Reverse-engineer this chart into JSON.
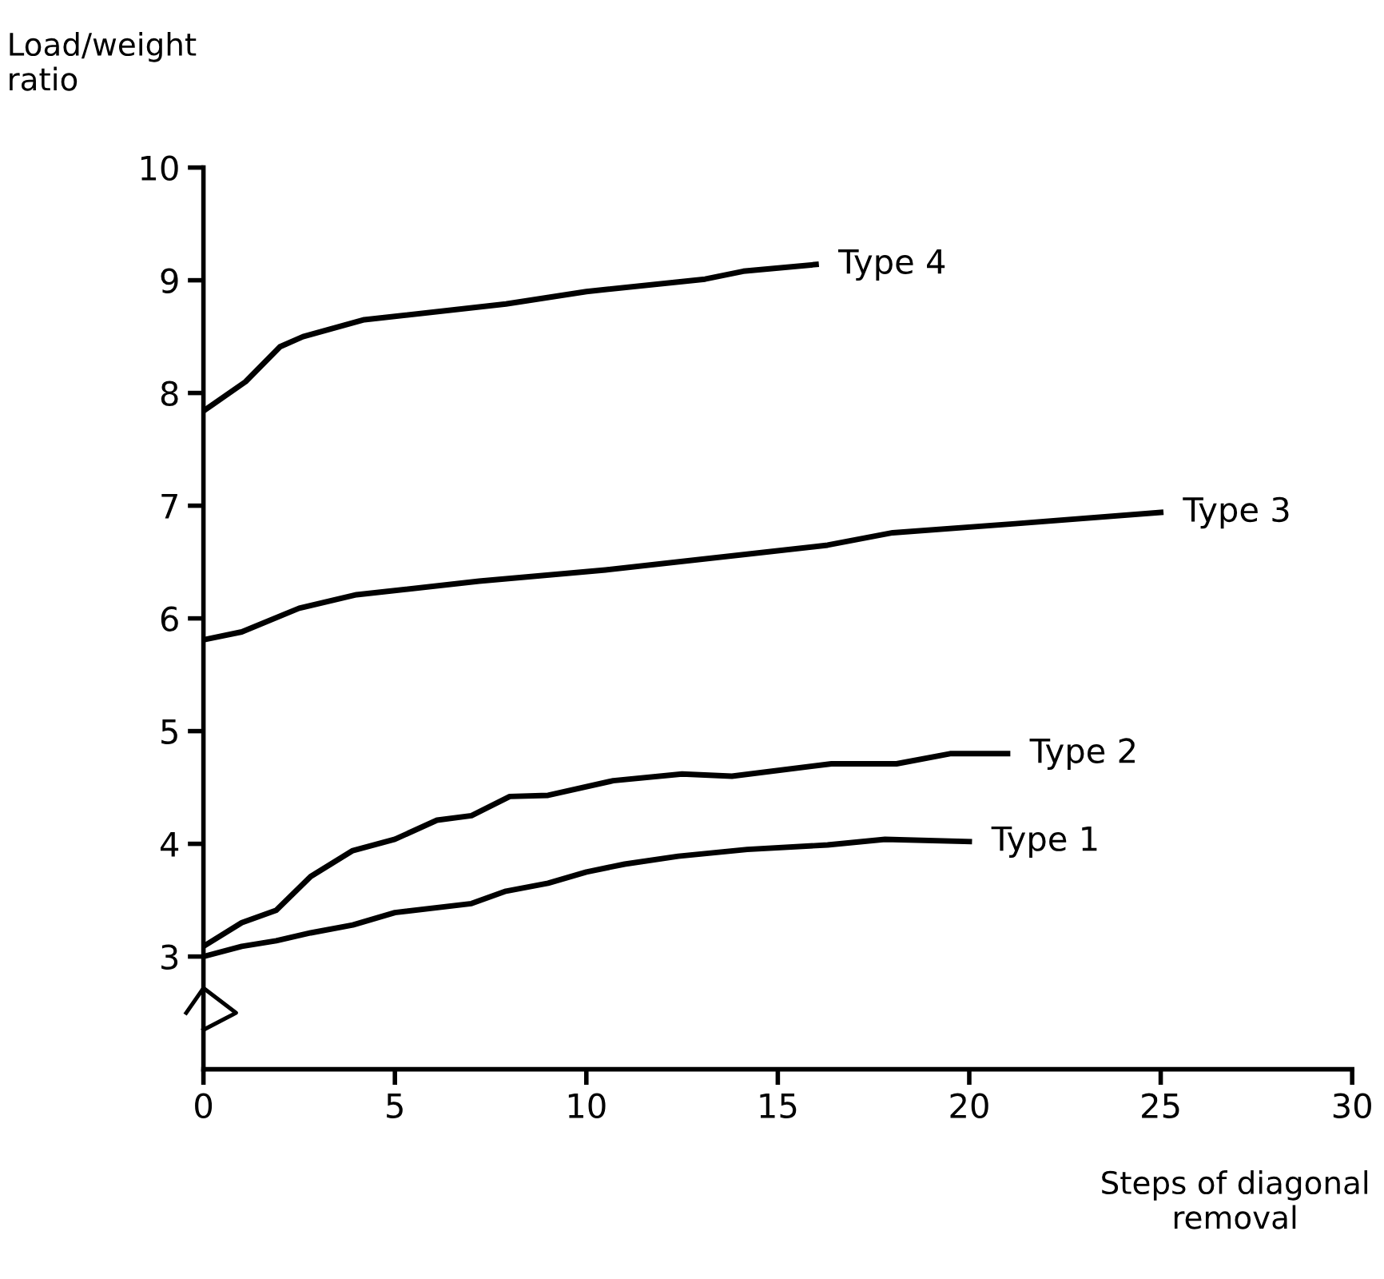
{
  "chart_data": {
    "type": "line",
    "xlabel": "Steps of diagonal\nremoval",
    "ylabel": "Load/weight\nratio",
    "xlim": [
      0,
      30
    ],
    "xticks": [
      0,
      5,
      10,
      15,
      20,
      25,
      30
    ],
    "ylim": [
      2,
      10
    ],
    "yticks": [
      3,
      4,
      5,
      6,
      7,
      8,
      9,
      10
    ],
    "grid": false,
    "legend": false,
    "marker": "none",
    "line_style": "solid",
    "series": [
      {
        "name": "Type 1",
        "color": "#000000",
        "x": [
          0,
          1,
          1.9,
          2.8,
          3.9,
          5,
          7,
          7.9,
          9,
          10,
          11,
          12.4,
          14.2,
          16.3,
          17.8,
          20
        ],
        "values": [
          3.0,
          3.09,
          3.14,
          3.21,
          3.28,
          3.39,
          3.47,
          3.58,
          3.65,
          3.75,
          3.82,
          3.89,
          3.95,
          3.99,
          4.04,
          4.02
        ]
      },
      {
        "name": "Type 2",
        "color": "#000000",
        "x": [
          0,
          1,
          1.9,
          2.8,
          3.9,
          5,
          6.1,
          7,
          8,
          9,
          10.7,
          12.5,
          13.8,
          16.4,
          18.1,
          19.5,
          21
        ],
        "values": [
          3.09,
          3.3,
          3.41,
          3.71,
          3.94,
          4.04,
          4.21,
          4.25,
          4.42,
          4.43,
          4.56,
          4.62,
          4.6,
          4.71,
          4.71,
          4.8,
          4.8
        ]
      },
      {
        "name": "Type 3",
        "color": "#000000",
        "x": [
          0,
          1,
          2.5,
          4,
          7.2,
          10.5,
          14.2,
          16.3,
          18,
          21.2,
          25
        ],
        "values": [
          5.81,
          5.88,
          6.09,
          6.21,
          6.33,
          6.43,
          6.57,
          6.65,
          6.76,
          6.84,
          6.94
        ]
      },
      {
        "name": "Type 4",
        "color": "#000000",
        "x": [
          0,
          1.1,
          2,
          2.6,
          4.2,
          7.9,
          10,
          13.1,
          14.1,
          16
        ],
        "values": [
          7.84,
          8.1,
          8.41,
          8.5,
          8.65,
          8.79,
          8.9,
          9.01,
          9.08,
          9.14
        ]
      }
    ]
  }
}
